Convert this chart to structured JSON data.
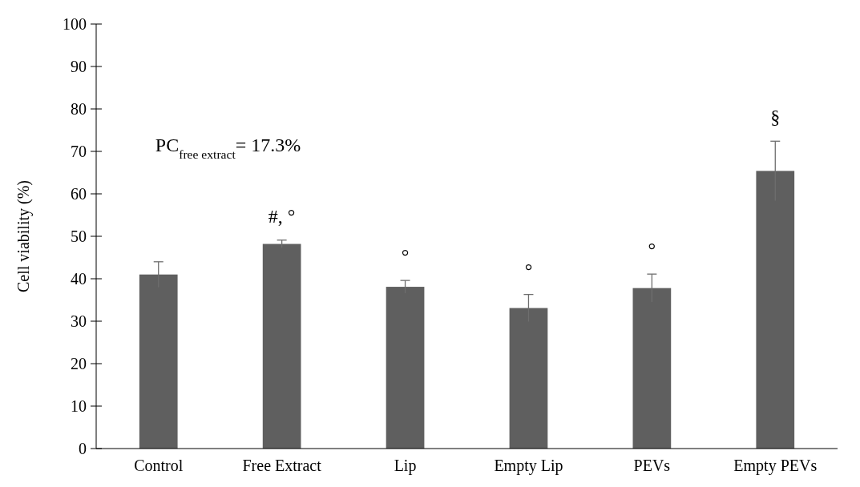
{
  "chart_data": {
    "type": "bar",
    "ylabel": "Cell viability (%)",
    "categories": [
      "Control",
      "Free Extract",
      "Lip",
      "Empty Lip",
      "PEVs",
      "Empty PEVs"
    ],
    "values": [
      41.0,
      48.2,
      38.1,
      33.1,
      37.8,
      65.4
    ],
    "errors": [
      3.0,
      0.9,
      1.5,
      3.2,
      3.3,
      7.0
    ],
    "color": "#5f5f5f",
    "ylim": [
      0,
      100
    ],
    "yticks": [
      0,
      10,
      20,
      30,
      40,
      50,
      60,
      70,
      80,
      90,
      100
    ],
    "grid": false,
    "annotations": [
      "PC$_{free extract}$= 17.3%",
      "#, °",
      "°",
      "°",
      "°",
      "§"
    ]
  }
}
